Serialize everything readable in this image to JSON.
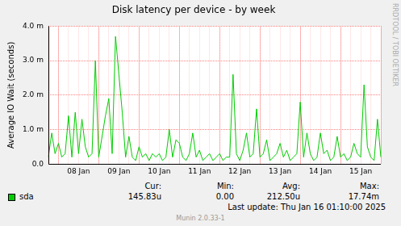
{
  "chart_data": {
    "type": "line",
    "title": "Disk latency per device - by week",
    "y_label": "Average IO Wait (seconds)",
    "categories": [
      null,
      null,
      null,
      null,
      null,
      null,
      null,
      null,
      null,
      "08 Jan",
      null,
      null,
      null,
      null,
      null,
      null,
      null,
      null,
      null,
      null,
      null,
      "09 Jan",
      null,
      null,
      null,
      null,
      null,
      null,
      null,
      null,
      null,
      null,
      null,
      "10 Jan",
      null,
      null,
      null,
      null,
      null,
      null,
      null,
      null,
      null,
      null,
      null,
      "11 Jan",
      null,
      null,
      null,
      null,
      null,
      null,
      null,
      null,
      null,
      null,
      null,
      "12 Jan",
      null,
      null,
      null,
      null,
      null,
      null,
      null,
      null,
      null,
      null,
      null,
      "13 Jan",
      null,
      null,
      null,
      null,
      null,
      null,
      null,
      null,
      null,
      null,
      null,
      "14 Jan",
      null,
      null,
      null,
      null,
      null,
      null,
      null,
      null,
      null,
      null,
      null,
      "15 Jan",
      null,
      null,
      null,
      null,
      null,
      null
    ],
    "series": [
      {
        "name": "sda",
        "color": "#00cc00",
        "values": [
          0.0002,
          0.0009,
          0.0003,
          0.0006,
          0.0002,
          0.0003,
          0.0014,
          0.0002,
          0.0015,
          0.0003,
          0.0013,
          0.0005,
          0.0002,
          0.0003,
          0.003,
          0.0002,
          0.0008,
          0.0014,
          0.0019,
          0.0003,
          0.0037,
          0.0026,
          0.0015,
          0.0002,
          0.0008,
          0.0002,
          0.0001,
          0.0005,
          0.0002,
          0.0003,
          0.0001,
          0.0003,
          0.0002,
          0.0003,
          0.0001,
          0.0002,
          0.001,
          0.0002,
          0.0007,
          0.0006,
          0.0002,
          0.0001,
          0.0003,
          0.0009,
          0.0002,
          0.0004,
          0.0001,
          0.0002,
          0.0003,
          0.0001,
          0.0002,
          0.0003,
          0.0001,
          0.0002,
          0.0002,
          0.0026,
          0.0003,
          0.0001,
          0.0004,
          0.0009,
          0.0002,
          0.0003,
          0.0016,
          0.0002,
          0.0003,
          0.0007,
          0.0001,
          0.0002,
          0.0003,
          0.0006,
          0.0002,
          0.0004,
          0.0001,
          0.0002,
          0.0003,
          0.0018,
          0.0002,
          0.0009,
          0.0003,
          0.0001,
          0.0002,
          0.0009,
          0.0003,
          0.0004,
          0.0001,
          0.0002,
          0.0008,
          0.0002,
          0.0003,
          0.0001,
          0.0002,
          0.0006,
          0.0003,
          0.0002,
          0.0023,
          0.0005,
          0.0002,
          0.0001,
          0.0013,
          0.0002
        ]
      }
    ],
    "ylim": [
      0,
      0.004
    ],
    "yticks": [
      {
        "value": 0,
        "label": "0.0"
      },
      {
        "value": 0.001,
        "label": "1.0 m"
      },
      {
        "value": 0.002,
        "label": "2.0 m"
      },
      {
        "value": 0.003,
        "label": "3.0 m"
      },
      {
        "value": 0.004,
        "label": "4.0 m"
      }
    ],
    "grid": true,
    "legend": "bottom",
    "summary": {
      "labels": [
        "Cur:",
        "Min:",
        "Avg:",
        "Max:"
      ],
      "values": [
        "145.83u",
        "0.00",
        "212.50u",
        "17.74m"
      ]
    },
    "annotations": [
      "Last update:  Thu Jan 16 01:10:00 2025",
      "RRDTOOL / TOBI OETIKER",
      "Munin 2.0.33-1"
    ]
  }
}
